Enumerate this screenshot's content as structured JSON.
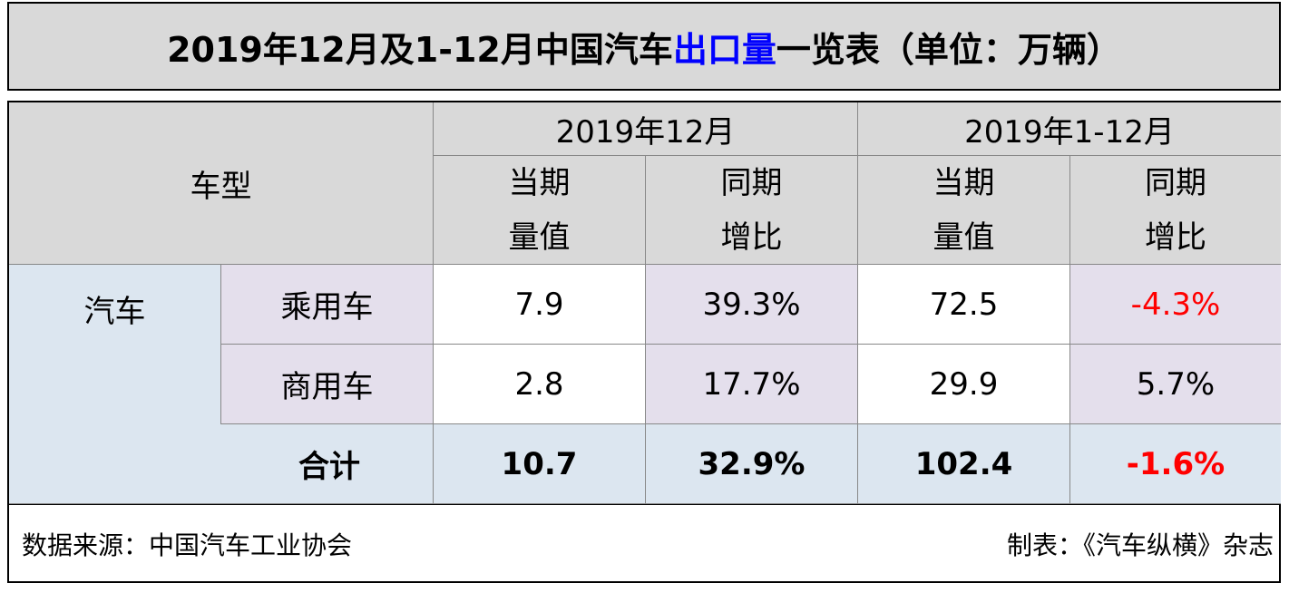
{
  "title": {
    "parts": [
      "2019年12月及1-12月中国汽车",
      "出口量",
      "一览表（单位：万辆）"
    ]
  },
  "table": {
    "header": {
      "vehicle_type": "车型",
      "periods": [
        "2019年12月",
        "2019年1-12月"
      ],
      "columns": [
        "当期量值",
        "同期增比",
        "当期量值",
        "同期增比"
      ]
    },
    "group": "汽车",
    "rows": [
      {
        "type": "乘用车",
        "values": [
          "7.9",
          "39.3%",
          "72.5",
          "-4.3%"
        ]
      },
      {
        "type": "商用车",
        "values": [
          "2.8",
          "17.7%",
          "29.9",
          "5.7%"
        ]
      }
    ],
    "total": {
      "label": "合计",
      "values": [
        "10.7",
        "32.9%",
        "102.4",
        "-1.6%"
      ]
    }
  },
  "footer": {
    "source": "数据来源：中国汽车工业协会",
    "maker": "制表：《汽车纵横》杂志"
  }
}
